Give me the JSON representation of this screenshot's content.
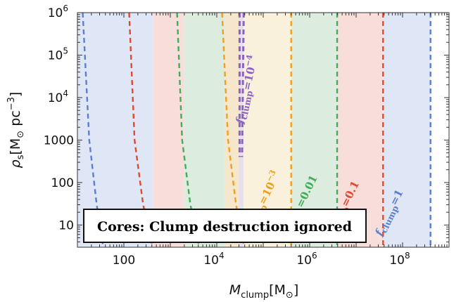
{
  "chart_data": {
    "type": "line",
    "annotation": "Cores: Clump destruction ignored",
    "xlabel": {
      "main": "M",
      "sub": "clump",
      "unit_open": "[M",
      "unit_sub": "⊙",
      "unit_close": "]"
    },
    "ylabel": {
      "main": "ρ",
      "sub": "s",
      "unit_open": "[M",
      "unit_sub": "⊙",
      "unit_mid": " pc",
      "unit_sup": "−3",
      "unit_close": "]"
    },
    "xscale": "log",
    "yscale": "log",
    "xlim": [
      10,
      1000000000
    ],
    "ylim": [
      3,
      1000000
    ],
    "x_ticks": [
      {
        "value": 100,
        "base": "100",
        "exp": ""
      },
      {
        "value": 10000,
        "base": "10",
        "exp": "4"
      },
      {
        "value": 1000000,
        "base": "10",
        "exp": "6"
      },
      {
        "value": 100000000,
        "base": "10",
        "exp": "8"
      }
    ],
    "y_ticks": [
      {
        "value": 1000000,
        "base": "10",
        "exp": "6"
      },
      {
        "value": 100000,
        "base": "10",
        "exp": "5"
      },
      {
        "value": 10000,
        "base": "10",
        "exp": "4"
      },
      {
        "value": 1000,
        "base": "1000",
        "exp": ""
      },
      {
        "value": 100,
        "base": "100",
        "exp": ""
      },
      {
        "value": 10,
        "base": "10",
        "exp": ""
      }
    ],
    "shaded_bands": [
      {
        "x_from": 10,
        "x_to": 420,
        "color": "#dfe6f6"
      },
      {
        "x_from": 420,
        "x_to": 2000,
        "color": "#f8dedb"
      },
      {
        "x_from": 2000,
        "x_to": 15000,
        "color": "#dcecde"
      },
      {
        "x_from": 15000,
        "x_to": 30000,
        "color": "#f6e6cc"
      },
      {
        "x_from": 30000,
        "x_to": 38000,
        "color": "#e6dff0"
      },
      {
        "x_from": 38000,
        "x_to": 400000,
        "color": "#faf1dc"
      },
      {
        "x_from": 400000,
        "x_to": 3900000,
        "color": "#dcecde"
      },
      {
        "x_from": 3900000,
        "x_to": 38000000,
        "color": "#f8dedb"
      },
      {
        "x_from": 38000000,
        "x_to": 400000000,
        "color": "#dfe6f6"
      }
    ],
    "series": [
      {
        "label_main": "f",
        "label_sub": "clump",
        "label_rest": "=1",
        "label_sup": "",
        "color": "#5b7fcf",
        "vertical": [
          {
            "x": 13,
            "y": 1000000
          },
          {
            "x": 18,
            "y": 1000
          },
          {
            "x": 26,
            "y": 30
          },
          {
            "x": 36,
            "y": 3
          }
        ],
        "horizontal_region": [
          {
            "x": 400000000,
            "y": 1000000
          },
          {
            "x": 400000000,
            "y": 3
          }
        ]
      },
      {
        "label_main": "f",
        "label_sub": "clump",
        "label_rest": "=0.1",
        "label_sup": "",
        "color": "#e1492f",
        "vertical": [
          {
            "x": 130,
            "y": 1000000
          },
          {
            "x": 170,
            "y": 1000
          },
          {
            "x": 260,
            "y": 30
          },
          {
            "x": 420,
            "y": 3
          }
        ],
        "horizontal_region": [
          {
            "x": 38000000,
            "y": 1000000
          },
          {
            "x": 38000000,
            "y": 3
          }
        ]
      },
      {
        "label_main": "f",
        "label_sub": "clump",
        "label_rest": "=0.01",
        "label_sup": "",
        "color": "#3fae57",
        "vertical": [
          {
            "x": 1400,
            "y": 1000000
          },
          {
            "x": 1800,
            "y": 1000
          },
          {
            "x": 2700,
            "y": 30
          },
          {
            "x": 4200,
            "y": 3
          }
        ],
        "horizontal_region": [
          {
            "x": 3900000,
            "y": 1000000
          },
          {
            "x": 3900000,
            "y": 3
          }
        ]
      },
      {
        "label_main": "f",
        "label_sub": "clump",
        "label_rest": "=10",
        "label_sup": "−3",
        "color": "#f0a020",
        "vertical": [
          {
            "x": 13000,
            "y": 1000000
          },
          {
            "x": 17500,
            "y": 1000
          },
          {
            "x": 26000,
            "y": 30
          },
          {
            "x": 39000,
            "y": 3
          }
        ],
        "horizontal_region": [
          {
            "x": 400000,
            "y": 1000000
          },
          {
            "x": 400000,
            "y": 3
          }
        ]
      },
      {
        "label_main": "f",
        "label_sub": "clump",
        "label_rest": "=10",
        "label_sup": "−4",
        "color": "#8d62c2",
        "vertical": [
          {
            "x": 31000,
            "y": 1000000
          },
          {
            "x": 31000,
            "y": 400
          }
        ],
        "horizontal_region": [
          {
            "x": 38000,
            "y": 1000000
          },
          {
            "x": 35000,
            "y": 400
          }
        ]
      }
    ],
    "curve_labels": [
      {
        "series": 0,
        "x": 60000000,
        "y": 18,
        "angle": -64,
        "size": 15
      },
      {
        "series": 1,
        "x": 6000000,
        "y": 22,
        "angle": -64,
        "size": 15
      },
      {
        "series": 2,
        "x": 700000,
        "y": 25,
        "angle": -64,
        "size": 15
      },
      {
        "series": 3,
        "x": 110000,
        "y": 30,
        "angle": -64,
        "size": 15
      },
      {
        "series": 4,
        "x": 52000,
        "y": 15000,
        "angle": -78,
        "size": 15
      }
    ]
  }
}
